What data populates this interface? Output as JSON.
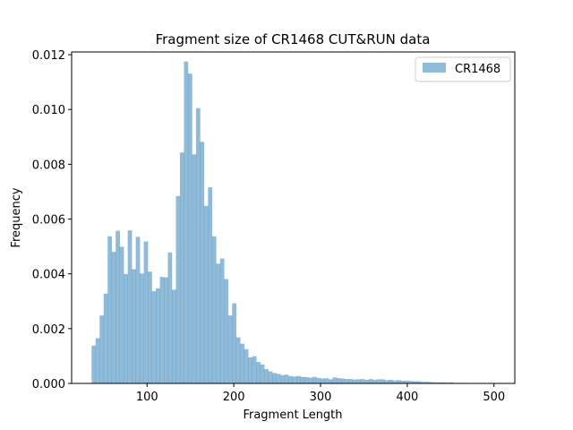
{
  "chart_data": {
    "type": "bar",
    "title": "Fragment size of CR1468 CUT&RUN data",
    "xlabel": "Fragment Length",
    "ylabel": "Frequency",
    "xlim": [
      13,
      524
    ],
    "ylim": [
      0,
      0.0121
    ],
    "xticks": [
      100,
      200,
      300,
      400,
      500
    ],
    "yticks": [
      0.0,
      0.002,
      0.004,
      0.006,
      0.008,
      0.01,
      0.012
    ],
    "ytick_labels": [
      "0.000",
      "0.002",
      "0.004",
      "0.006",
      "0.008",
      "0.010",
      "0.012"
    ],
    "grid": false,
    "legend_position": "top-right",
    "bin_start": 36,
    "bin_width": 4.63,
    "series": [
      {
        "name": "CR1468",
        "color": "#1f77b4",
        "opacity": 0.5,
        "values": [
          0.00138,
          0.00165,
          0.00248,
          0.00328,
          0.00537,
          0.0048,
          0.00557,
          0.00499,
          0.00399,
          0.00559,
          0.00417,
          0.00535,
          0.00401,
          0.00518,
          0.00408,
          0.00337,
          0.00347,
          0.00389,
          0.00387,
          0.00478,
          0.00342,
          0.00684,
          0.00843,
          0.01175,
          0.01131,
          0.00836,
          0.01005,
          0.00882,
          0.00648,
          0.00716,
          0.00537,
          0.00437,
          0.00456,
          0.00381,
          0.00248,
          0.00292,
          0.00168,
          0.00145,
          0.00125,
          0.00095,
          0.00099,
          0.00078,
          0.00069,
          0.00052,
          0.00044,
          0.00038,
          0.00035,
          0.0003,
          0.00032,
          0.00027,
          0.00025,
          0.00027,
          0.00024,
          0.00023,
          0.00021,
          0.00024,
          0.0002,
          0.00018,
          0.00019,
          0.00015,
          0.00022,
          0.00019,
          0.00018,
          0.00016,
          0.00016,
          0.00014,
          0.00015,
          0.00016,
          0.00013,
          0.00016,
          0.00013,
          0.00015,
          0.00015,
          0.00012,
          0.00013,
          0.00011,
          0.00012,
          0.0001,
          0.0001,
          9e-05,
          8e-05,
          8e-05,
          6e-05,
          6e-05,
          5e-05,
          4e-05,
          4e-05,
          4e-05,
          3e-05,
          4e-05,
          2e-05,
          2e-05,
          2e-05,
          1e-05,
          1e-05,
          1e-05,
          1e-05,
          1e-05,
          1e-05,
          1e-05,
          1e-05,
          1e-05,
          1e-05,
          1e-05,
          1e-05,
          1e-05
        ]
      }
    ]
  }
}
